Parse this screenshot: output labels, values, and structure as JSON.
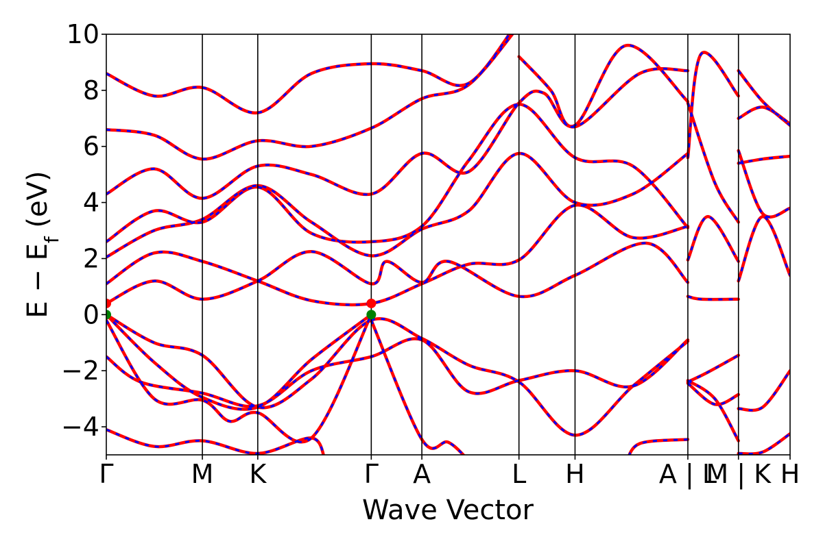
{
  "chart_data": {
    "type": "line",
    "xlabel": "Wave Vector",
    "ylabel": "E − E",
    "ylabel_sub": "f",
    "ylabel_unit": " (eV)",
    "ylim": [
      -5,
      10
    ],
    "yticks": [
      -4,
      -2,
      0,
      2,
      4,
      6,
      8,
      10
    ],
    "ytick_labels": [
      "−4",
      "−2",
      "0",
      "2",
      "4",
      "6",
      "8",
      "10"
    ],
    "grid": false,
    "kpoints": [
      {
        "label": "Γ",
        "x": 0.0
      },
      {
        "label": "M",
        "x": 0.1405
      },
      {
        "label": "K",
        "x": 0.2215
      },
      {
        "label": "Γ",
        "x": 0.3875
      },
      {
        "label": "A",
        "x": 0.4615
      },
      {
        "label": "L",
        "x": 0.6035
      },
      {
        "label": "H",
        "x": 0.6855
      },
      {
        "label": "A | L",
        "x": 0.8505
      },
      {
        "label": "M | K",
        "x": 0.9245
      },
      {
        "label": "H",
        "x": 1.0
      }
    ],
    "series": [
      {
        "style": "dft",
        "color": "#ff0000",
        "dash": false,
        "bands": [
          [
            [
              0,
              -1.5
            ],
            [
              0.05,
              -2.4
            ],
            [
              0.1405,
              -2.8
            ],
            [
              0.2215,
              -3.25
            ],
            [
              0.3,
              -2.0
            ],
            [
              0.3875,
              -1.5
            ],
            [
              0.4615,
              -0.9
            ],
            [
              0.53,
              -2.75
            ],
            [
              0.6035,
              -2.35
            ],
            [
              0.6855,
              -2.0
            ],
            [
              0.77,
              -2.55
            ],
            [
              0.8505,
              -0.9
            ]
          ],
          [
            [
              0,
              0.0
            ],
            [
              0.07,
              -1.0
            ],
            [
              0.1405,
              -1.45
            ],
            [
              0.2215,
              -3.3
            ],
            [
              0.3,
              -2.3
            ],
            [
              0.3875,
              -0.2
            ],
            [
              0.4615,
              -0.85
            ],
            [
              0.53,
              -1.8
            ],
            [
              0.6035,
              -2.4
            ],
            [
              0.6855,
              -4.3
            ],
            [
              0.77,
              -2.55
            ],
            [
              0.8505,
              -0.95
            ]
          ],
          [
            [
              0,
              0.0
            ],
            [
              0.07,
              -1.7
            ],
            [
              0.1405,
              -2.95
            ],
            [
              0.2215,
              -3.3
            ],
            [
              0.3,
              -1.6
            ],
            [
              0.3875,
              0.0
            ]
          ],
          [
            [
              0,
              -0.2
            ],
            [
              0.07,
              -3.0
            ],
            [
              0.1405,
              -3.05
            ],
            [
              0.18,
              -3.8
            ],
            [
              0.2215,
              -3.5
            ],
            [
              0.3,
              -4.4
            ],
            [
              0.3875,
              0.0
            ]
          ],
          [
            [
              0,
              0.4
            ],
            [
              0.07,
              1.2
            ],
            [
              0.1405,
              0.55
            ],
            [
              0.2215,
              1.2
            ],
            [
              0.3,
              2.25
            ],
            [
              0.3875,
              1.1
            ],
            [
              0.41,
              1.9
            ],
            [
              0.4615,
              1.15
            ],
            [
              0.5,
              1.9
            ],
            [
              0.6035,
              0.65
            ],
            [
              0.6855,
              1.4
            ],
            [
              0.79,
              2.55
            ],
            [
              0.8505,
              1.15
            ]
          ],
          [
            [
              0,
              1.1
            ],
            [
              0.07,
              2.2
            ],
            [
              0.1405,
              1.9
            ],
            [
              0.2215,
              1.2
            ],
            [
              0.3,
              0.5
            ],
            [
              0.3875,
              0.4
            ],
            [
              0.4615,
              1.1
            ],
            [
              0.53,
              1.8
            ],
            [
              0.6035,
              1.95
            ],
            [
              0.6855,
              3.9
            ],
            [
              0.77,
              2.75
            ],
            [
              0.8505,
              3.15
            ]
          ],
          [
            [
              0,
              2.05
            ],
            [
              0.07,
              3.0
            ],
            [
              0.1405,
              3.4
            ],
            [
              0.2215,
              4.6
            ],
            [
              0.3,
              3.3
            ],
            [
              0.3875,
              2.1
            ],
            [
              0.4615,
              3.05
            ],
            [
              0.53,
              3.7
            ],
            [
              0.6035,
              5.75
            ],
            [
              0.6855,
              4.0
            ],
            [
              0.77,
              4.3
            ],
            [
              0.8505,
              5.75
            ]
          ],
          [
            [
              0,
              2.6
            ],
            [
              0.07,
              3.7
            ],
            [
              0.1405,
              3.3
            ],
            [
              0.2215,
              4.55
            ],
            [
              0.3,
              2.9
            ],
            [
              0.3875,
              2.6
            ],
            [
              0.4615,
              3.15
            ],
            [
              0.53,
              5.5
            ],
            [
              0.6035,
              7.5
            ],
            [
              0.6855,
              5.6
            ],
            [
              0.77,
              5.3
            ],
            [
              0.8505,
              3.1
            ]
          ],
          [
            [
              0,
              4.3
            ],
            [
              0.07,
              5.2
            ],
            [
              0.1405,
              4.15
            ],
            [
              0.2215,
              5.3
            ],
            [
              0.3,
              5.0
            ],
            [
              0.3875,
              4.3
            ],
            [
              0.4615,
              5.75
            ],
            [
              0.53,
              5.1
            ],
            [
              0.6035,
              7.55
            ],
            [
              0.64,
              7.9
            ],
            [
              0.6855,
              6.75
            ],
            [
              0.76,
              9.6
            ],
            [
              0.8505,
              7.6
            ]
          ],
          [
            [
              0,
              6.6
            ],
            [
              0.07,
              6.4
            ],
            [
              0.1405,
              5.55
            ],
            [
              0.2215,
              6.2
            ],
            [
              0.3,
              6.0
            ],
            [
              0.3875,
              6.65
            ],
            [
              0.4615,
              7.7
            ],
            [
              0.53,
              8.2
            ],
            [
              0.6035,
              10.3
            ]
          ],
          [
            [
              0,
              8.6
            ],
            [
              0.07,
              7.8
            ],
            [
              0.1405,
              8.1
            ],
            [
              0.2215,
              7.2
            ],
            [
              0.3,
              8.6
            ],
            [
              0.3875,
              8.95
            ],
            [
              0.4615,
              8.7
            ],
            [
              0.53,
              8.25
            ],
            [
              0.6035,
              10.5
            ]
          ],
          [
            [
              0.8505,
              8.7
            ],
            [
              0.78,
              8.6
            ],
            [
              0.6855,
              6.7
            ],
            [
              0.65,
              8.0
            ],
            [
              0.6035,
              9.2
            ]
          ],
          [
            [
              0.8505,
              -4.45
            ],
            [
              0.78,
              -4.6
            ],
            [
              0.76,
              -5.3
            ]
          ],
          [
            [
              0.3875,
              -0.2
            ],
            [
              0.4615,
              -4.45
            ],
            [
              0.5,
              -4.55
            ],
            [
              0.53,
              -5.2
            ]
          ],
          [
            [
              0,
              -4.1
            ],
            [
              0.07,
              -4.7
            ],
            [
              0.1405,
              -4.5
            ],
            [
              0.2215,
              -4.95
            ],
            [
              0.3,
              -4.4
            ],
            [
              0.32,
              -5.2
            ]
          ],
          [
            [
              0.8505,
              0.65
            ],
            [
              0.87,
              0.55
            ],
            [
              0.9245,
              0.55
            ]
          ],
          [
            [
              0.8505,
              1.95
            ],
            [
              0.88,
              3.5
            ],
            [
              0.9245,
              1.9
            ]
          ],
          [
            [
              0.8505,
              7.55
            ],
            [
              0.89,
              4.7
            ],
            [
              0.9245,
              3.3
            ]
          ],
          [
            [
              0.8505,
              -2.4
            ],
            [
              0.88,
              -2.05
            ],
            [
              0.9245,
              -1.45
            ]
          ],
          [
            [
              0.8505,
              -2.45
            ],
            [
              0.89,
              -3.2
            ],
            [
              0.9245,
              -2.85
            ]
          ],
          [
            [
              0.8505,
              -2.35
            ],
            [
              0.89,
              -3.0
            ],
            [
              0.9245,
              -4.5
            ]
          ],
          [
            [
              0.8505,
              5.6
            ],
            [
              0.87,
              9.3
            ],
            [
              0.9245,
              7.8
            ]
          ],
          [
            [
              0.9245,
              -4.95
            ],
            [
              0.96,
              -4.9
            ],
            [
              1.0,
              -4.25
            ]
          ],
          [
            [
              0.9245,
              -3.35
            ],
            [
              0.96,
              -3.3
            ],
            [
              1.0,
              -2.0
            ]
          ],
          [
            [
              0.9245,
              1.2
            ],
            [
              0.96,
              3.5
            ],
            [
              1.0,
              1.4
            ]
          ],
          [
            [
              0.9245,
              5.4
            ],
            [
              0.96,
              5.55
            ],
            [
              1.0,
              5.65
            ]
          ],
          [
            [
              0.9245,
              5.85
            ],
            [
              0.96,
              3.6
            ],
            [
              1.0,
              3.8
            ]
          ],
          [
            [
              0.9245,
              7.0
            ],
            [
              0.96,
              7.4
            ],
            [
              1.0,
              6.8
            ]
          ],
          [
            [
              0.9245,
              8.7
            ],
            [
              0.96,
              7.6
            ],
            [
              1.0,
              6.75
            ]
          ]
        ]
      },
      {
        "style": "wannier",
        "color": "#0000ff",
        "dash": true,
        "same_bands_as": "dft"
      }
    ],
    "markers": [
      {
        "x": 0.0,
        "y": 0.4,
        "color": "#ff0000"
      },
      {
        "x": 0.0,
        "y": 0.0,
        "color": "#008000"
      },
      {
        "x": 0.3875,
        "y": 0.4,
        "color": "#ff0000"
      },
      {
        "x": 0.3875,
        "y": 0.0,
        "color": "#008000"
      }
    ]
  }
}
